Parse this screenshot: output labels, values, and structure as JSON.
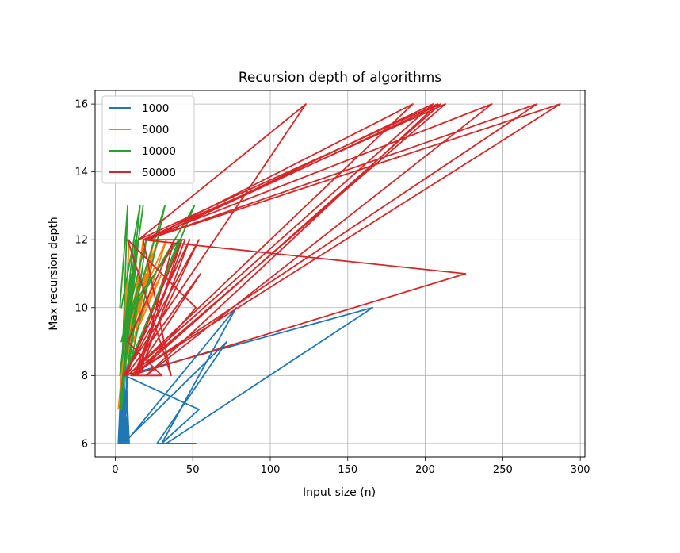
{
  "chart_data": {
    "type": "line",
    "title": "Recursion depth of algorithms",
    "xlabel": "Input size (n)",
    "ylabel": "Max recursion depth",
    "xlim": [
      -13,
      303
    ],
    "ylim": [
      5.6,
      16.4
    ],
    "xticks": [
      0,
      50,
      100,
      150,
      200,
      250,
      300
    ],
    "yticks": [
      6,
      8,
      10,
      12,
      14,
      16
    ],
    "grid": true,
    "legend_position": "top-left",
    "series": [
      {
        "name": "1000",
        "color": "#1f77b4",
        "x": [
          2,
          6,
          4,
          7,
          3,
          5,
          2,
          6,
          8,
          4,
          7,
          5,
          3,
          6,
          9,
          2,
          5,
          7,
          4,
          6,
          78,
          30,
          54,
          6,
          166,
          33,
          52,
          27,
          72,
          5,
          8,
          3,
          7,
          4,
          6,
          9,
          5
        ],
        "y": [
          6,
          8,
          6,
          9,
          6,
          7,
          6,
          10,
          6,
          8,
          6,
          9,
          6,
          7,
          6,
          6,
          8,
          6,
          7,
          6,
          10,
          6,
          7,
          8,
          10,
          6,
          6,
          6,
          9,
          6,
          8,
          6,
          7,
          6,
          9,
          6,
          6
        ]
      },
      {
        "name": "5000",
        "color": "#ff7f0e",
        "x": [
          2,
          6,
          9,
          4,
          12,
          7,
          3,
          15,
          8,
          5,
          20,
          10,
          6,
          25,
          12,
          33,
          14,
          8,
          30,
          11,
          18,
          9,
          22,
          13,
          7,
          28,
          10,
          4,
          16,
          6,
          12,
          3
        ],
        "y": [
          7,
          9,
          12,
          8,
          11,
          9,
          8,
          12,
          9,
          8,
          11,
          10,
          9,
          12,
          9,
          12,
          10,
          9,
          11,
          9,
          12,
          9,
          11,
          10,
          9,
          12,
          10,
          8,
          11,
          9,
          10,
          8
        ]
      },
      {
        "name": "10000",
        "color": "#2ca02c",
        "x": [
          3,
          8,
          5,
          12,
          4,
          16,
          7,
          10,
          3,
          18,
          6,
          14,
          9,
          4,
          20,
          8,
          32,
          12,
          5,
          17,
          7,
          41,
          10,
          6,
          51,
          13,
          5,
          15,
          8,
          4,
          11,
          6,
          9,
          3,
          13,
          7
        ],
        "y": [
          10,
          13,
          9,
          12,
          10,
          13,
          9,
          11,
          8,
          13,
          9,
          12,
          10,
          9,
          12,
          8,
          13,
          10,
          9,
          11,
          8,
          12,
          10,
          8,
          13,
          10,
          8,
          12,
          9,
          7,
          11,
          8,
          10,
          7,
          12,
          9
        ]
      },
      {
        "name": "50000",
        "color": "#d62728",
        "x": [
          5,
          123,
          15,
          208,
          20,
          243,
          18,
          213,
          10,
          272,
          20,
          287,
          10,
          226,
          18,
          36,
          8,
          52,
          14,
          43,
          7,
          55,
          12,
          45,
          20,
          192,
          8,
          205,
          22,
          210,
          12,
          54,
          6,
          48,
          15,
          38,
          8,
          30,
          10
        ],
        "y": [
          8,
          16,
          12,
          16,
          8,
          16,
          12,
          16,
          8,
          16,
          12,
          16,
          8,
          11,
          12,
          8,
          12,
          10,
          8,
          12,
          8,
          11,
          8,
          12,
          12,
          16,
          8,
          16,
          12,
          16,
          8,
          12,
          8,
          12,
          8,
          12,
          9,
          8,
          8
        ]
      }
    ]
  }
}
